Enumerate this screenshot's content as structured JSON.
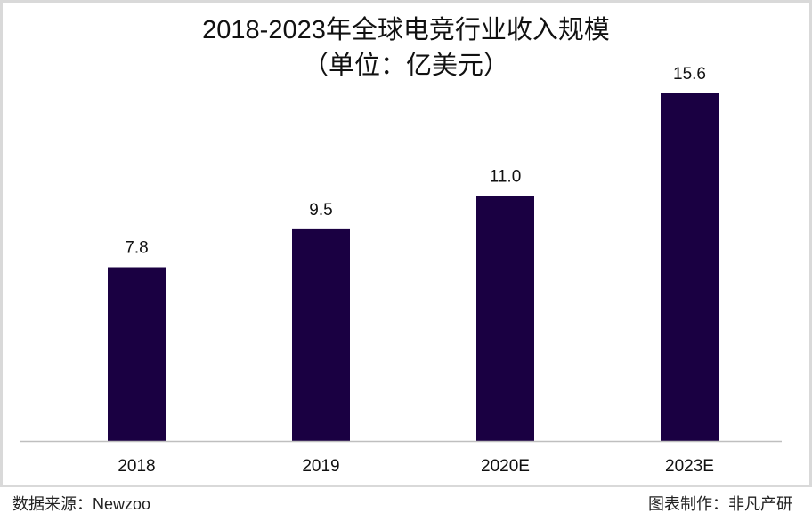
{
  "chart_data": {
    "type": "bar",
    "title": "2018-2023年全球电竞行业收入规模",
    "subtitle": "（单位：亿美元）",
    "categories": [
      "2018",
      "2019",
      "2020E",
      "2023E"
    ],
    "values": [
      7.8,
      9.5,
      11.0,
      15.6
    ],
    "value_labels": [
      "7.8",
      "9.5",
      "11.0",
      "15.6"
    ],
    "xlabel": "",
    "ylabel": "",
    "ylim": [
      0,
      15.6
    ],
    "grid": false,
    "bar_color": "#1a0042"
  },
  "footer": {
    "source": "数据来源：Newzoo",
    "maker": "图表制作：非凡产研"
  }
}
